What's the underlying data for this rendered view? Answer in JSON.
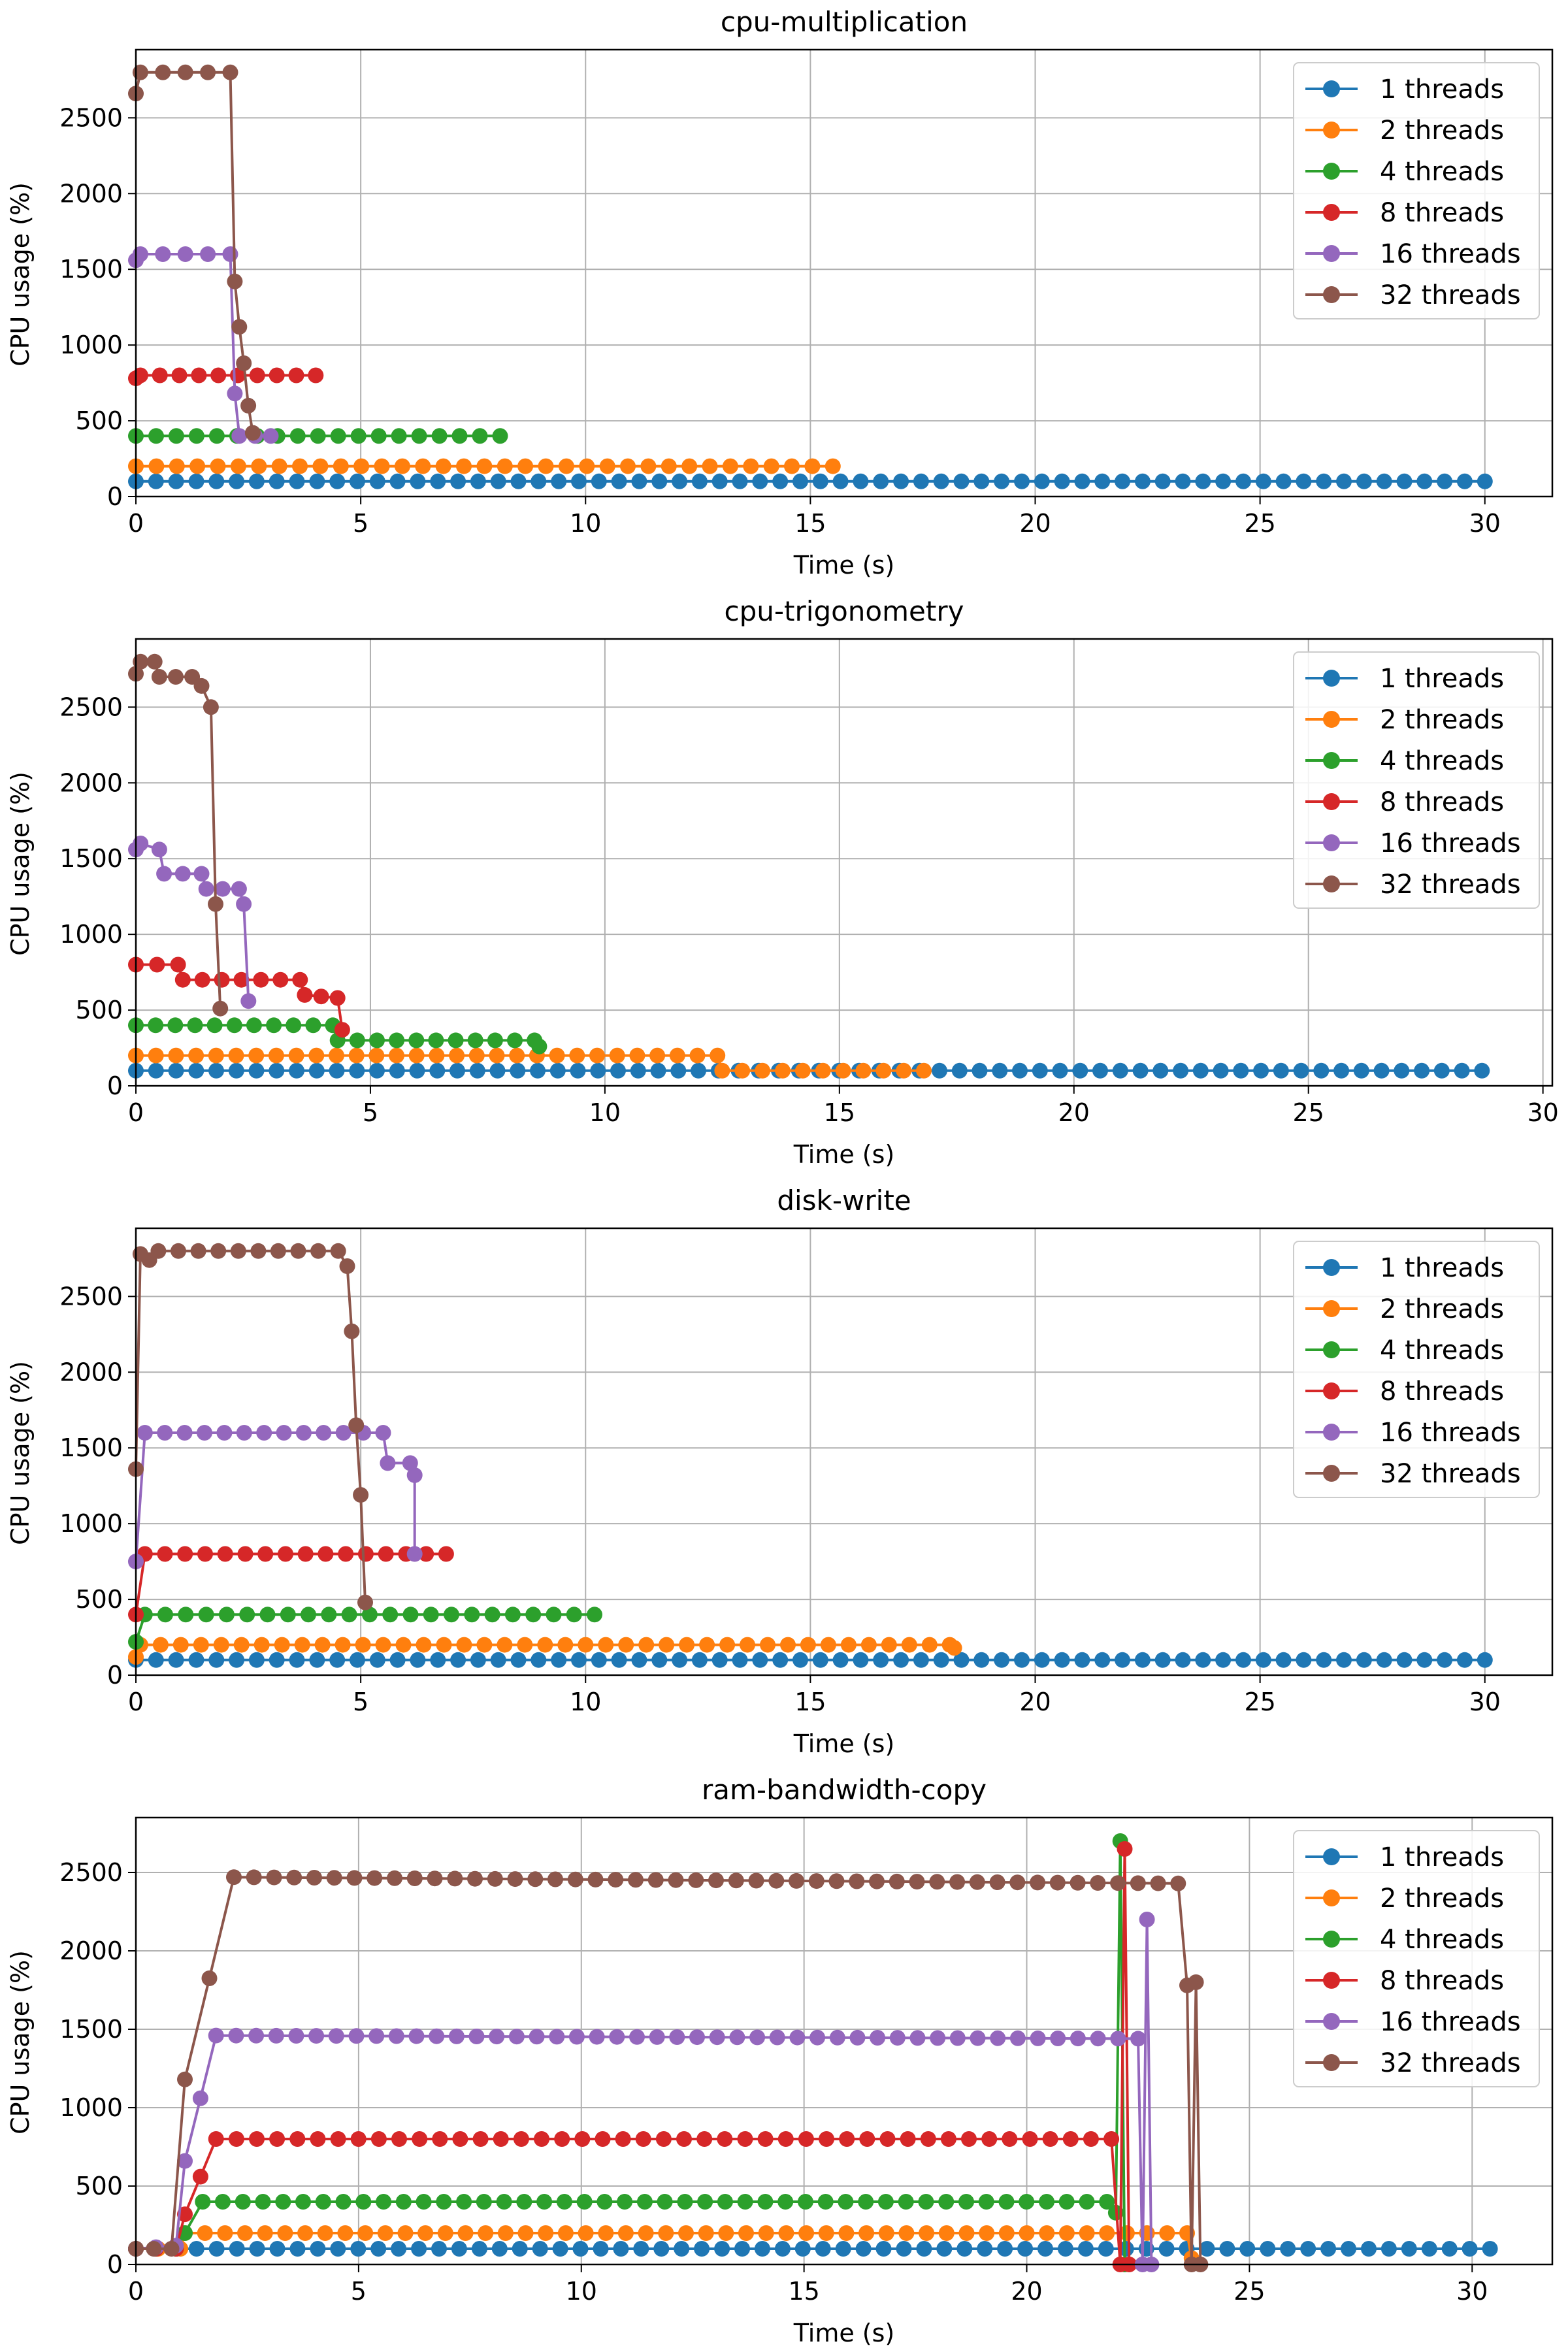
{
  "colors": {
    "1 threads": "#1f77b4",
    "2 threads": "#ff7f0e",
    "4 threads": "#2ca02c",
    "8 threads": "#d62728",
    "16 threads": "#9467bd",
    "32 threads": "#8c564b"
  },
  "chart_data": [
    {
      "type": "line",
      "title": "cpu-multiplication",
      "xlabel": "Time (s)",
      "ylabel": "CPU usage (%)",
      "xlim": [
        0,
        31.5
      ],
      "ylim": [
        0,
        2950
      ],
      "xticks": [
        0,
        5,
        10,
        15,
        20,
        25,
        30
      ],
      "yticks": [
        0,
        500,
        1000,
        1500,
        2000,
        2500
      ],
      "grid": true,
      "legend": "top-right",
      "series": [
        {
          "name": "1 threads",
          "segments": [
            [
              0,
              100
            ],
            [
              30,
              100
            ]
          ]
        },
        {
          "name": "2 threads",
          "segments": [
            [
              0,
              200
            ],
            [
              15.5,
              200
            ]
          ]
        },
        {
          "name": "4 threads",
          "segments": [
            [
              0,
              400
            ],
            [
              8.1,
              400
            ]
          ]
        },
        {
          "name": "8 threads",
          "segments": [
            [
              0,
              780
            ],
            [
              0.1,
              800
            ],
            [
              4.0,
              800
            ]
          ]
        },
        {
          "name": "16 threads",
          "segments": [
            [
              0,
              1560
            ],
            [
              0.1,
              1600
            ],
            [
              2.1,
              1600
            ],
            [
              2.2,
              680
            ],
            [
              2.3,
              400
            ],
            [
              3.0,
              400
            ]
          ]
        },
        {
          "name": "32 threads",
          "segments": [
            [
              0,
              2660
            ],
            [
              0.1,
              2800
            ],
            [
              2.1,
              2800
            ],
            [
              2.2,
              1420
            ],
            [
              2.3,
              1120
            ],
            [
              2.4,
              880
            ],
            [
              2.5,
              600
            ],
            [
              2.6,
              420
            ]
          ]
        }
      ]
    },
    {
      "type": "line",
      "title": "cpu-trigonometry",
      "xlabel": "Time (s)",
      "ylabel": "CPU usage (%)",
      "xlim": [
        0,
        30.2
      ],
      "ylim": [
        0,
        2950
      ],
      "xticks": [
        0,
        5,
        10,
        15,
        20,
        25,
        30
      ],
      "yticks": [
        0,
        500,
        1000,
        1500,
        2000,
        2500
      ],
      "grid": true,
      "legend": "top-right",
      "series": [
        {
          "name": "1 threads",
          "segments": [
            [
              0,
              100
            ],
            [
              28.7,
              100
            ]
          ]
        },
        {
          "name": "2 threads",
          "segments": [
            [
              0,
              200
            ],
            [
              12.4,
              200
            ],
            [
              12.5,
              100
            ],
            [
              16.8,
              100
            ]
          ]
        },
        {
          "name": "4 threads",
          "segments": [
            [
              0,
              400
            ],
            [
              4.2,
              400
            ],
            [
              4.3,
              300
            ],
            [
              8.5,
              300
            ],
            [
              8.6,
              260
            ]
          ]
        },
        {
          "name": "8 threads",
          "segments": [
            [
              0,
              800
            ],
            [
              0.9,
              800
            ],
            [
              1.0,
              700
            ],
            [
              3.5,
              700
            ],
            [
              3.6,
              600
            ],
            [
              4.3,
              580
            ],
            [
              4.4,
              370
            ]
          ]
        },
        {
          "name": "16 threads",
          "segments": [
            [
              0,
              1560
            ],
            [
              0.1,
              1600
            ],
            [
              0.5,
              1560
            ],
            [
              0.6,
              1400
            ],
            [
              1.4,
              1400
            ],
            [
              1.5,
              1300
            ],
            [
              2.2,
              1300
            ],
            [
              2.3,
              1200
            ],
            [
              2.4,
              560
            ]
          ]
        },
        {
          "name": "32 threads",
          "segments": [
            [
              0,
              2720
            ],
            [
              0.1,
              2800
            ],
            [
              0.4,
              2800
            ],
            [
              0.5,
              2700
            ],
            [
              1.2,
              2700
            ],
            [
              1.4,
              2640
            ],
            [
              1.6,
              2500
            ],
            [
              1.7,
              1200
            ],
            [
              1.8,
              510
            ]
          ]
        }
      ]
    },
    {
      "type": "line",
      "title": "disk-write",
      "xlabel": "Time (s)",
      "ylabel": "CPU usage (%)",
      "xlim": [
        0,
        31.5
      ],
      "ylim": [
        0,
        2950
      ],
      "xticks": [
        0,
        5,
        10,
        15,
        20,
        25,
        30
      ],
      "yticks": [
        0,
        500,
        1000,
        1500,
        2000,
        2500
      ],
      "grid": true,
      "legend": "top-right",
      "series": [
        {
          "name": "1 threads",
          "segments": [
            [
              0,
              100
            ],
            [
              30,
              100
            ]
          ]
        },
        {
          "name": "2 threads",
          "segments": [
            [
              0,
              120
            ],
            [
              0.1,
              200
            ],
            [
              18.1,
              200
            ],
            [
              18.2,
              180
            ]
          ]
        },
        {
          "name": "4 threads",
          "segments": [
            [
              0,
              220
            ],
            [
              0.2,
              400
            ],
            [
              10.2,
              400
            ]
          ]
        },
        {
          "name": "8 threads",
          "segments": [
            [
              0,
              400
            ],
            [
              0.2,
              800
            ],
            [
              6.9,
              800
            ]
          ]
        },
        {
          "name": "16 threads",
          "segments": [
            [
              0,
              750
            ],
            [
              0.2,
              1600
            ],
            [
              5.5,
              1600
            ],
            [
              5.6,
              1400
            ],
            [
              6.1,
              1400
            ],
            [
              6.2,
              1320
            ],
            [
              6.2,
              800
            ]
          ]
        },
        {
          "name": "32 threads",
          "segments": [
            [
              0,
              1360
            ],
            [
              0.1,
              2780
            ],
            [
              0.3,
              2740
            ],
            [
              0.5,
              2800
            ],
            [
              4.5,
              2800
            ],
            [
              4.7,
              2700
            ],
            [
              4.8,
              2270
            ],
            [
              4.9,
              1650
            ],
            [
              5.0,
              1190
            ],
            [
              5.1,
              480
            ]
          ]
        }
      ]
    },
    {
      "type": "line",
      "title": "ram-bandwidth-copy",
      "xlabel": "Time (s)",
      "ylabel": "CPU usage (%)",
      "xlim": [
        0,
        31.8
      ],
      "ylim": [
        0,
        2850
      ],
      "xticks": [
        0,
        5,
        10,
        15,
        20,
        25,
        30
      ],
      "yticks": [
        0,
        500,
        1000,
        1500,
        2000,
        2500
      ],
      "grid": true,
      "legend": "top-right",
      "series": [
        {
          "name": "1 threads",
          "segments": [
            [
              0,
              100
            ],
            [
              30.4,
              100
            ]
          ]
        },
        {
          "name": "2 threads",
          "segments": [
            [
              0,
              100
            ],
            [
              1.0,
              100
            ],
            [
              1.1,
              200
            ],
            [
              23.6,
              200
            ],
            [
              23.7,
              40
            ]
          ]
        },
        {
          "name": "4 threads",
          "segments": [
            [
              0,
              100
            ],
            [
              0.9,
              100
            ],
            [
              1.1,
              200
            ],
            [
              1.5,
              400
            ],
            [
              21.8,
              400
            ],
            [
              22.0,
              330
            ],
            [
              22.1,
              2700
            ],
            [
              22.2,
              0
            ]
          ]
        },
        {
          "name": "8 threads",
          "segments": [
            [
              0,
              100
            ],
            [
              0.9,
              100
            ],
            [
              1.1,
              320
            ],
            [
              1.8,
              800
            ],
            [
              21.9,
              800
            ],
            [
              22.1,
              0
            ],
            [
              22.2,
              2650
            ],
            [
              22.3,
              0
            ]
          ]
        },
        {
          "name": "16 threads",
          "segments": [
            [
              0,
              100
            ],
            [
              0.9,
              120
            ],
            [
              1.1,
              660
            ],
            [
              1.8,
              1460
            ],
            [
              22.5,
              1440
            ],
            [
              22.6,
              0
            ],
            [
              22.7,
              2200
            ],
            [
              22.8,
              0
            ]
          ]
        },
        {
          "name": "32 threads",
          "segments": [
            [
              0,
              100
            ],
            [
              0.8,
              100
            ],
            [
              1.1,
              1180
            ],
            [
              2.2,
              2470
            ],
            [
              23.4,
              2430
            ],
            [
              23.6,
              1780
            ],
            [
              23.7,
              0
            ],
            [
              23.8,
              1800
            ],
            [
              23.9,
              0
            ]
          ]
        }
      ]
    }
  ]
}
